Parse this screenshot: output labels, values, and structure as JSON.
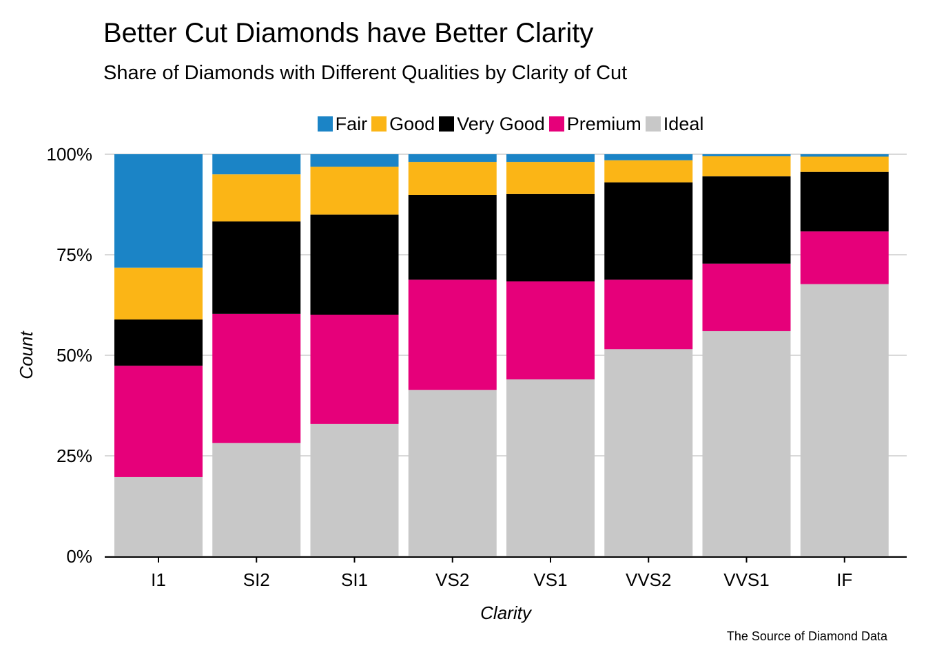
{
  "chart_data": {
    "type": "bar",
    "stacked": true,
    "normalized": true,
    "title": "Better Cut Diamonds have Better Clarity",
    "subtitle": "Share of Diamonds with Different Qualities by Clarity of Cut",
    "caption": "The Source of Diamond Data",
    "xlabel": "Clarity",
    "ylabel": "Count",
    "ylim": [
      0,
      1
    ],
    "y_ticks": [
      0,
      0.25,
      0.5,
      0.75,
      1
    ],
    "y_tick_labels": [
      "0%",
      "25%",
      "50%",
      "75%",
      "100%"
    ],
    "categories": [
      "I1",
      "SI2",
      "SI1",
      "VS2",
      "VS1",
      "VVS2",
      "VVS1",
      "IF"
    ],
    "legend_position": "top",
    "grid": "horizontal",
    "series": [
      {
        "name": "Ideal",
        "color": "#C8C8C8",
        "values": [
          0.197,
          0.282,
          0.329,
          0.414,
          0.44,
          0.515,
          0.56,
          0.677
        ]
      },
      {
        "name": "Premium",
        "color": "#E6007A",
        "values": [
          0.277,
          0.321,
          0.272,
          0.274,
          0.244,
          0.173,
          0.168,
          0.131
        ]
      },
      {
        "name": "Very Good",
        "color": "#000000",
        "values": [
          0.115,
          0.23,
          0.249,
          0.211,
          0.217,
          0.242,
          0.217,
          0.148
        ]
      },
      {
        "name": "Good",
        "color": "#FBB516",
        "values": [
          0.129,
          0.117,
          0.119,
          0.082,
          0.08,
          0.055,
          0.05,
          0.038
        ]
      },
      {
        "name": "Fair",
        "color": "#1B84C6",
        "values": [
          0.282,
          0.05,
          0.031,
          0.019,
          0.019,
          0.015,
          0.005,
          0.006
        ]
      }
    ],
    "legend_order": [
      "Fair",
      "Good",
      "Very Good",
      "Premium",
      "Ideal"
    ]
  }
}
